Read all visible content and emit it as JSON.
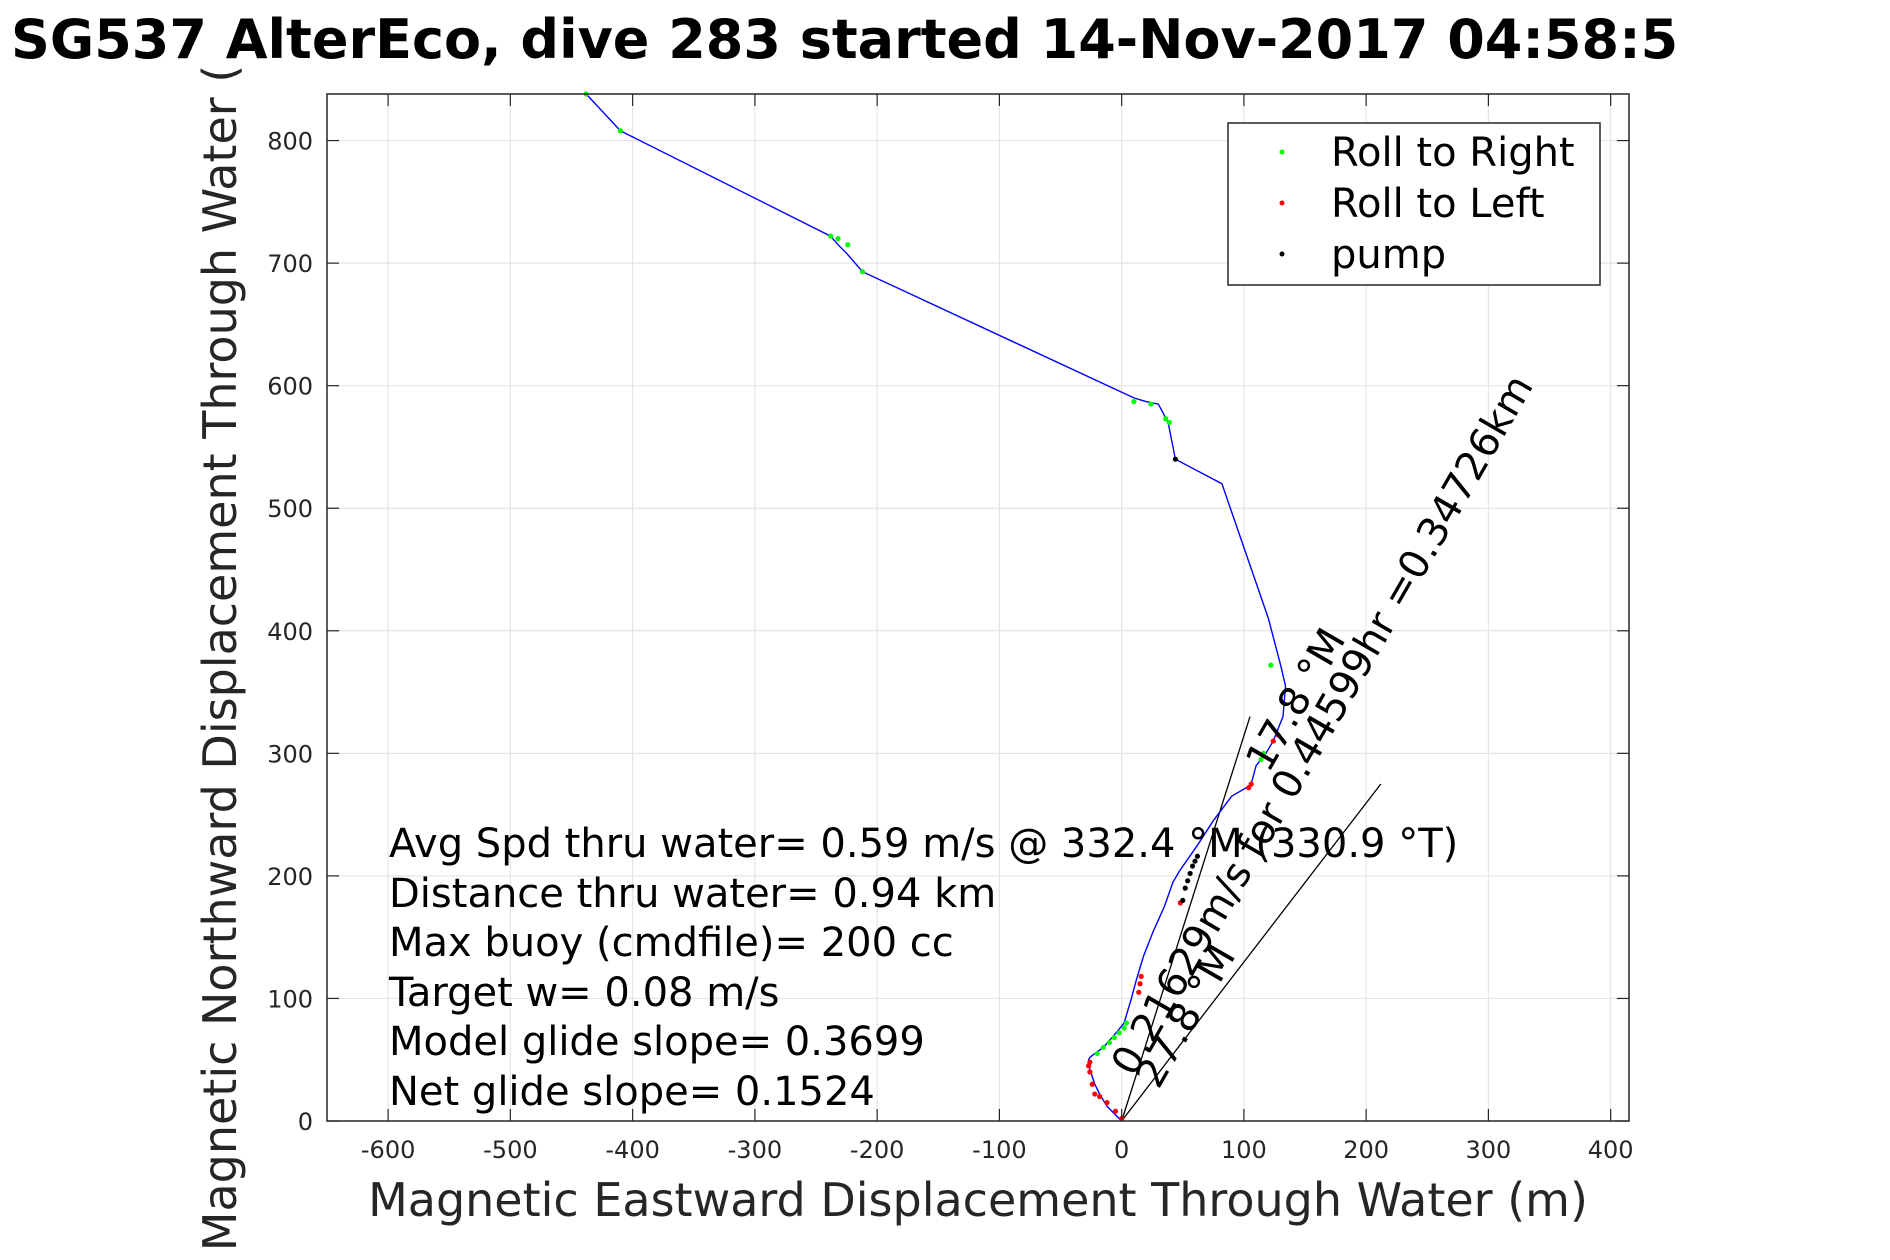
{
  "chart_data": {
    "type": "line",
    "title": "SG537 AlterEco, dive 283 started 14-Nov-2017 04:58:5",
    "xlabel": "Magnetic Eastward Displacement Through Water (m)",
    "ylabel": "Magnetic Northward Displacement Through Water (",
    "xlim": [
      -650,
      415
    ],
    "ylim": [
      0,
      838
    ],
    "xticks": [
      -600,
      -500,
      -400,
      -300,
      -200,
      -100,
      0,
      100,
      200,
      300,
      400
    ],
    "yticks": [
      0,
      100,
      200,
      300,
      400,
      500,
      600,
      700,
      800
    ],
    "grid": true,
    "legend_position": "top-right",
    "colors": {
      "track": "#0000ff",
      "roll_right": "#00ff00",
      "roll_left": "#ff0000",
      "pump": "#000000",
      "reference_lines": "#000000",
      "grid": "#e5e5e5"
    },
    "track": {
      "x": [
        0,
        -5,
        -12,
        -18,
        -22,
        -26,
        -27,
        -26,
        -22,
        -15,
        -8,
        -2,
        2,
        8,
        12,
        18,
        26,
        35,
        42,
        48,
        55,
        62,
        75,
        90,
        102,
        106,
        110,
        118,
        124,
        128,
        132,
        134,
        130,
        120,
        82,
        44,
        38,
        30,
        20,
        10,
        -212,
        -225,
        -232,
        -238,
        -410,
        -438
      ],
      "y": [
        0,
        5,
        12,
        22,
        30,
        42,
        50,
        52,
        55,
        60,
        68,
        75,
        80,
        100,
        115,
        135,
        155,
        175,
        195,
        205,
        215,
        225,
        245,
        265,
        272,
        275,
        290,
        300,
        310,
        320,
        330,
        355,
        372,
        410,
        520,
        540,
        570,
        585,
        587,
        590,
        693,
        708,
        715,
        722,
        808,
        838
      ]
    },
    "series": [
      {
        "name": "Roll to Right",
        "marker": "dot",
        "x": [
          10,
          24,
          36,
          39,
          -224,
          -232,
          -238,
          -212,
          -410,
          -438,
          122,
          114,
          116,
          -20,
          -15,
          -10,
          -6,
          -2,
          2,
          4
        ],
        "y": [
          587,
          585,
          573,
          570,
          715,
          720,
          722,
          693,
          808,
          838,
          372,
          295,
          300,
          55,
          60,
          64,
          68,
          72,
          76,
          80
        ]
      },
      {
        "name": "Roll to Left",
        "marker": "dot",
        "x": [
          -26,
          -27,
          -26,
          -24,
          -22,
          -18,
          -12,
          -5,
          0,
          14,
          15,
          16,
          104,
          106,
          124,
          128,
          48
        ],
        "y": [
          40,
          45,
          48,
          30,
          22,
          20,
          15,
          8,
          2,
          105,
          112,
          118,
          272,
          275,
          310,
          315,
          178
        ]
      },
      {
        "name": "pump",
        "marker": "dot",
        "x": [
          44,
          50,
          52,
          54,
          56,
          58,
          60,
          62
        ],
        "y": [
          540,
          180,
          190,
          196,
          202,
          208,
          212,
          216
        ]
      }
    ],
    "reference_lines": [
      {
        "from": [
          0,
          0
        ],
        "to": [
          105,
          330
        ]
      },
      {
        "from": [
          0,
          0
        ],
        "to": [
          212,
          275
        ]
      }
    ],
    "legend": [
      "Roll to Right",
      "Roll to Left",
      "pump"
    ],
    "annotations": {
      "stats": [
        "Avg Spd thru water=  0.59 m/s @ 332.4 °M (330.9 °T)",
        "Distance thru water=  0.94 km",
        "Max buoy (cmdfile)= 200 cc",
        "Target w= 0.08 m/s",
        "Model glide slope= 0.3699",
        "Net glide slope= 0.1524"
      ],
      "rotated": [
        {
          "text": "0.21629m/s for 0.44599hr =0.34726km",
          "x": 10,
          "y": 35,
          "angle": 60
        },
        {
          "text": "17.8 °M",
          "x": 120,
          "y": 283,
          "angle": 60
        },
        {
          "text": "27.8 °M",
          "x": 30,
          "y": 25,
          "angle": 60
        }
      ]
    }
  }
}
